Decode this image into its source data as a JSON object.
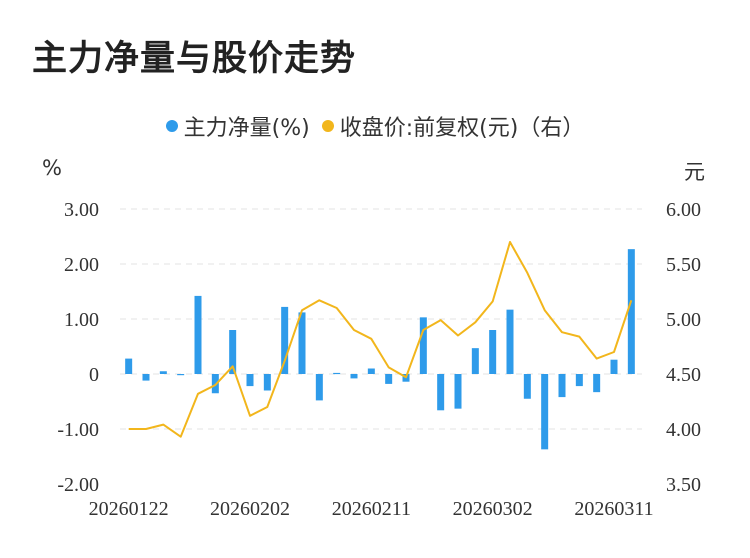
{
  "page": {
    "title": "主力净量与股价走势"
  },
  "legend": {
    "series1": {
      "label": "主力净量(%)",
      "color": "#2e9bea"
    },
    "series2": {
      "label": "收盘价:前复权(元)（右）",
      "color": "#f2b61c"
    }
  },
  "axes": {
    "left_unit": "%",
    "right_unit": "元"
  },
  "chart_data": {
    "type": "bar+line",
    "title": "主力净量与股价走势",
    "x_tick_labels": [
      "20260122",
      "20260202",
      "20260211",
      "20260302",
      "20260311"
    ],
    "x_tick_indices": [
      0,
      7,
      14,
      21,
      28
    ],
    "y_left": {
      "ticks": [
        "3.00",
        "2.00",
        "1.00",
        "0",
        "-1.00",
        "-2.00"
      ],
      "lim": [
        -2,
        3
      ]
    },
    "y_right": {
      "ticks": [
        "6.00",
        "5.50",
        "5.00",
        "4.50",
        "4.00",
        "3.50"
      ],
      "lim": [
        3.5,
        6
      ]
    },
    "grid": true,
    "legend_position": "top",
    "series": [
      {
        "name": "主力净量(%)",
        "type": "bar",
        "axis": "left",
        "color": "#2e9bea",
        "values": [
          0.28,
          -0.12,
          0.05,
          0.0,
          1.42,
          -0.35,
          0.8,
          -0.22,
          -0.3,
          1.22,
          1.12,
          -0.48,
          0.02,
          -0.08,
          0.1,
          -0.18,
          -0.14,
          1.03,
          -0.66,
          -0.63,
          0.47,
          0.8,
          1.17,
          -0.45,
          -1.37,
          -0.42,
          -0.22,
          -0.33,
          0.26,
          2.27
        ]
      },
      {
        "name": "收盘价:前复权(元)（右）",
        "type": "line",
        "axis": "right",
        "color": "#f2b61c",
        "values": [
          4.0,
          4.0,
          4.04,
          3.93,
          4.32,
          4.4,
          4.57,
          4.12,
          4.2,
          4.62,
          5.08,
          5.17,
          5.1,
          4.9,
          4.82,
          4.56,
          4.47,
          4.9,
          4.99,
          4.85,
          4.97,
          5.16,
          5.7,
          5.42,
          5.08,
          4.88,
          4.84,
          4.64,
          4.7,
          5.17
        ]
      }
    ]
  }
}
